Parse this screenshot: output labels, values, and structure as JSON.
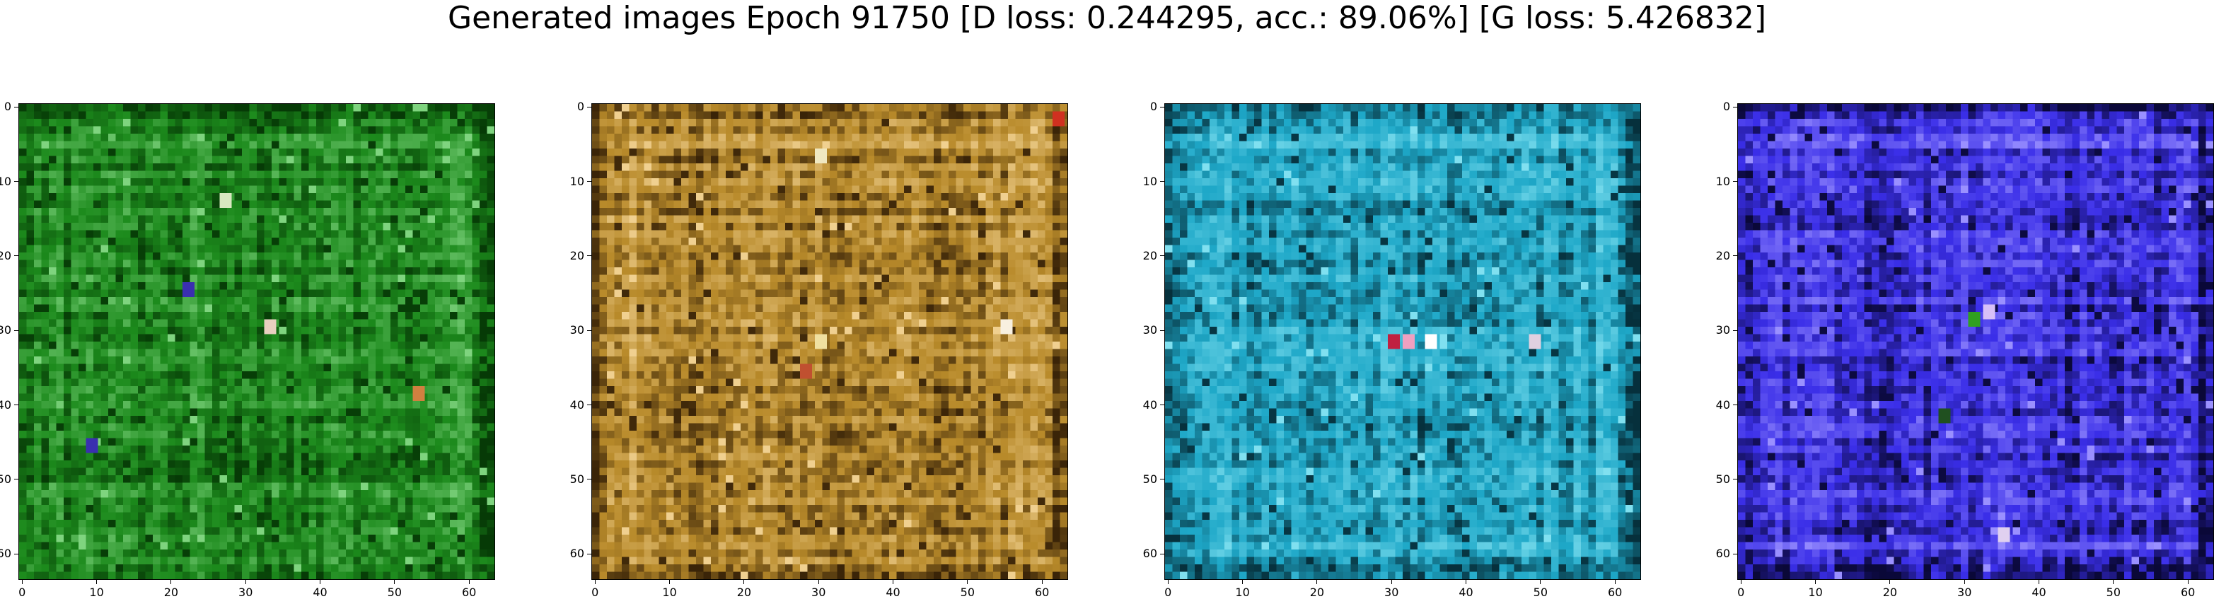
{
  "title": "Generated images Epoch 91750 [D loss: 0.244295, acc.: 89.06%] [G loss: 5.426832]",
  "chart_data": [
    {
      "type": "heatmap",
      "xlim": [
        -0.5,
        63.5
      ],
      "ylim": [
        63.5,
        -0.5
      ],
      "xticks": [
        0,
        10,
        20,
        30,
        40,
        50,
        60
      ],
      "yticks": [
        0,
        10,
        20,
        30,
        40,
        50,
        60
      ],
      "base_color": "#1c8a1c",
      "dark_color": "#063a06",
      "light_color": "#7fd47f",
      "spots": [
        {
          "x": 22,
          "y": 24,
          "color": "#3a2fb0"
        },
        {
          "x": 9,
          "y": 45,
          "color": "#3a2fb0"
        },
        {
          "x": 33,
          "y": 29,
          "color": "#e8d0c0"
        },
        {
          "x": 53,
          "y": 38,
          "color": "#d08040"
        },
        {
          "x": 27,
          "y": 12,
          "color": "#d8e8c0"
        }
      ]
    },
    {
      "type": "heatmap",
      "xlim": [
        -0.5,
        63.5
      ],
      "ylim": [
        63.5,
        -0.5
      ],
      "xticks": [
        0,
        10,
        20,
        30,
        40,
        50,
        60
      ],
      "yticks": [
        0,
        10,
        20,
        30,
        40,
        50,
        60
      ],
      "base_color": "#b88a2a",
      "dark_color": "#3a2408",
      "light_color": "#f0d090",
      "spots": [
        {
          "x": 30,
          "y": 31,
          "color": "#f0e0a0"
        },
        {
          "x": 28,
          "y": 35,
          "color": "#c05030"
        },
        {
          "x": 55,
          "y": 29,
          "color": "#f8f0e0"
        },
        {
          "x": 30,
          "y": 6,
          "color": "#f0e8c0"
        },
        {
          "x": 62,
          "y": 1,
          "color": "#d03020"
        }
      ]
    },
    {
      "type": "heatmap",
      "xlim": [
        -0.5,
        63.5
      ],
      "ylim": [
        63.5,
        -0.5
      ],
      "xticks": [
        0,
        10,
        20,
        30,
        40,
        50,
        60
      ],
      "yticks": [
        0,
        10,
        20,
        30,
        40,
        50,
        60
      ],
      "base_color": "#1ea8c8",
      "dark_color": "#06303c",
      "light_color": "#80e0f0",
      "spots": [
        {
          "x": 32,
          "y": 31,
          "color": "#f0a0c0"
        },
        {
          "x": 35,
          "y": 31,
          "color": "#ffffff"
        },
        {
          "x": 49,
          "y": 31,
          "color": "#e0d0e0"
        },
        {
          "x": 30,
          "y": 31,
          "color": "#c02040"
        }
      ]
    },
    {
      "type": "heatmap",
      "xlim": [
        -0.5,
        63.5
      ],
      "ylim": [
        63.5,
        -0.5
      ],
      "xticks": [
        0,
        10,
        20,
        30,
        40,
        50,
        60
      ],
      "yticks": [
        0,
        10,
        20,
        30,
        40,
        50,
        60
      ],
      "base_color": "#3a2ee8",
      "dark_color": "#0a0838",
      "light_color": "#9a90ff",
      "spots": [
        {
          "x": 33,
          "y": 27,
          "color": "#d8c0f8"
        },
        {
          "x": 31,
          "y": 28,
          "color": "#30a020"
        },
        {
          "x": 35,
          "y": 57,
          "color": "#e0d0f0"
        },
        {
          "x": 27,
          "y": 41,
          "color": "#205020"
        }
      ]
    }
  ]
}
